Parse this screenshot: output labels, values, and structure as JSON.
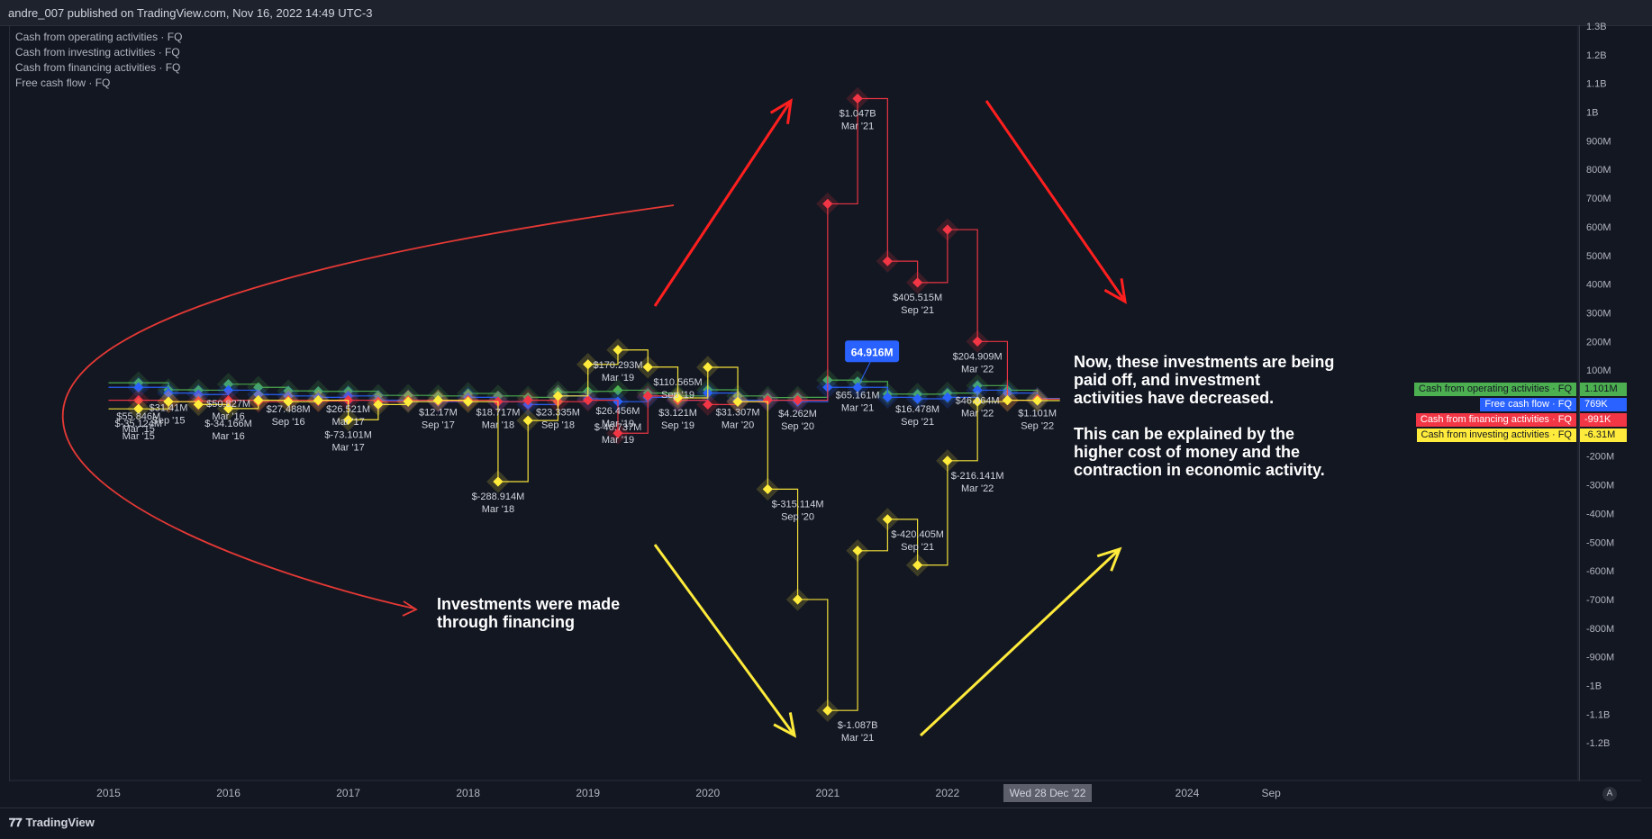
{
  "header": {
    "publisher": "andre_007 published on TradingView.com, Nov 16, 2022 14:49 UTC-3"
  },
  "legend": [
    "Cash from operating activities · FQ",
    "Cash from investing activities · FQ",
    "Cash from financing activities · FQ",
    "Free cash flow · FQ"
  ],
  "badges": [
    {
      "name": "Cash from operating activities · FQ",
      "value": "1.101M",
      "color": "#4caf50",
      "text_color": "#131722"
    },
    {
      "name": "Free cash flow · FQ",
      "value": "769K",
      "color": "#2962ff",
      "text_color": "#ffffff"
    },
    {
      "name": "Cash from financing activities · FQ",
      "value": "-991K",
      "color": "#f23645",
      "text_color": "#ffffff"
    },
    {
      "name": "Cash from investing activities · FQ",
      "value": "-6.31M",
      "color": "#ffeb3b",
      "text_color": "#131722"
    }
  ],
  "callouts": {
    "left": "Investments were made\nthrough financing",
    "right": "Now, these investments are being\npaid off, and investment\nactivities have decreased.\n\nThis can be explained by the\nhigher cost of money and the\ncontraction in economic activity."
  },
  "crosshair_date": "Wed 28 Dec '22",
  "footer": {
    "brand": "TradingView",
    "auto_label": "A"
  },
  "chart_data": {
    "type": "line",
    "step": true,
    "y_unit": "USD",
    "y_ticks": [
      "1.3B",
      "1.2B",
      "1.1B",
      "1B",
      "900M",
      "800M",
      "700M",
      "600M",
      "500M",
      "400M",
      "300M",
      "200M",
      "100M",
      "",
      "-200M",
      "-300M",
      "-400M",
      "-500M",
      "-600M",
      "-700M",
      "-800M",
      "-900M",
      "-1B",
      "-1.1B",
      "-1.2B"
    ],
    "y_tick_values": [
      1300,
      1200,
      1100,
      1000,
      900,
      800,
      700,
      600,
      500,
      400,
      300,
      200,
      100,
      0,
      -200,
      -300,
      -400,
      -500,
      -600,
      -700,
      -800,
      -900,
      -1000,
      -1100,
      -1200
    ],
    "ylim": [
      -1250,
      1330
    ],
    "x_ticks": [
      "2015",
      "2016",
      "2017",
      "2018",
      "2019",
      "2020",
      "2021",
      "2022",
      "2024",
      "Sep"
    ],
    "x_tick_values": [
      2015.0,
      2016.0,
      2017.0,
      2018.0,
      2019.0,
      2020.0,
      2021.0,
      2022.0,
      2024.0,
      2024.7
    ],
    "xlim": [
      2014.15,
      2027.8
    ],
    "quarters": [
      2015.25,
      2015.5,
      2015.75,
      2016.0,
      2016.25,
      2016.5,
      2016.75,
      2017.0,
      2017.25,
      2017.5,
      2017.75,
      2018.0,
      2018.25,
      2018.5,
      2018.75,
      2019.0,
      2019.25,
      2019.5,
      2019.75,
      2020.0,
      2020.25,
      2020.5,
      2020.75,
      2021.0,
      2021.25,
      2021.5,
      2021.75,
      2022.0,
      2022.25,
      2022.5,
      2022.75
    ],
    "series": [
      {
        "name": "Cash from operating activities · FQ",
        "color": "#4caf50",
        "values": [
          55.8,
          31.4,
          30,
          50.8,
          40,
          27.5,
          26,
          26.5,
          12,
          12,
          10,
          18.7,
          10,
          5,
          23.3,
          26,
          30,
          20,
          10,
          31.3,
          10,
          4.3,
          5,
          65.2,
          60,
          16.5,
          16,
          20,
          46.1,
          30,
          1.1
        ]
      },
      {
        "name": "Free cash flow · FQ",
        "color": "#2962ff",
        "values": [
          40,
          20,
          15,
          30,
          15,
          10,
          5,
          10,
          -5,
          -5,
          -10,
          5,
          -10,
          -20,
          10,
          0,
          -10,
          5,
          -5,
          20,
          -5,
          -5,
          -10,
          40,
          40,
          5,
          0,
          5,
          30,
          20,
          0.8
        ]
      },
      {
        "name": "Cash from financing activities · FQ",
        "color": "#f23645",
        "values": [
          -5,
          -10,
          -8,
          -5,
          -10,
          -5,
          -8,
          -5,
          -10,
          -5,
          -8,
          -5,
          -10,
          -5,
          -10,
          -5,
          -120,
          10,
          -5,
          -20,
          -10,
          -5,
          -5,
          680,
          1047,
          480,
          405.5,
          590,
          200,
          -5,
          -1
        ]
      },
      {
        "name": "Cash from investing activities · FQ",
        "color": "#ffeb3b",
        "values": [
          -35.1,
          -10,
          -20,
          -34.2,
          -5,
          -10,
          -5,
          -73.1,
          -20,
          -10,
          -5,
          -10,
          -288.9,
          -75.8,
          10,
          120,
          170.3,
          110.6,
          3.1,
          110,
          -10,
          -315.1,
          -700,
          -1087,
          -530,
          -420.4,
          -580,
          -216.1,
          -10,
          -5,
          -6.3
        ]
      }
    ],
    "data_labels": [
      {
        "text": "$55.846M",
        "sub": "Mar '15"
      },
      {
        "text": "$-35.124M",
        "sub": "Mar '15"
      },
      {
        "text": "$31.41M",
        "sub": "Sep '15"
      },
      {
        "text": "$50.827M",
        "sub": "Mar '16"
      },
      {
        "text": "$-34.166M",
        "sub": "Mar '16"
      },
      {
        "text": "$27.488M",
        "sub": "Sep '16"
      },
      {
        "text": "$26.521M",
        "sub": "Mar '17"
      },
      {
        "text": "$-73.101M",
        "sub": "Mar '17"
      },
      {
        "text": "$12.17M",
        "sub": "Sep '17"
      },
      {
        "text": "$18.717M",
        "sub": "Mar '18"
      },
      {
        "text": "$-288.914M",
        "sub": "Mar '18"
      },
      {
        "text": "$23.335M",
        "sub": "Sep '18"
      },
      {
        "text": "$170.293M",
        "sub": "Mar '19"
      },
      {
        "text": "$26.456M",
        "sub": "Mar '19"
      },
      {
        "text": "$-46.737M",
        "sub": "Mar '19"
      },
      {
        "text": "$110.565M",
        "sub": "Sep '19"
      },
      {
        "text": "$3.121M",
        "sub": "Sep '19"
      },
      {
        "text": "$31.307M",
        "sub": "Mar '20"
      },
      {
        "text": "$4.262M",
        "sub": "Sep '20"
      },
      {
        "text": "$-315.114M",
        "sub": "Sep '20"
      },
      {
        "text": "$1.047B",
        "sub": "Mar '21"
      },
      {
        "text": "$65.161M",
        "sub": "Mar '21"
      },
      {
        "text": "$-1.087B",
        "sub": "Mar '21"
      },
      {
        "text": "$405.515M",
        "sub": "Sep '21"
      },
      {
        "text": "$16.478M",
        "sub": "Sep '21"
      },
      {
        "text": "$-420.405M",
        "sub": "Sep '21"
      },
      {
        "text": "$204.909M",
        "sub": "Mar '22"
      },
      {
        "text": "$46.064M",
        "sub": "Mar '22"
      },
      {
        "text": "$-216.141M",
        "sub": "Mar '22"
      },
      {
        "text": "$1.101M",
        "sub": "Sep '22"
      }
    ],
    "highlight": {
      "text": "64.916M",
      "color": "#2962ff"
    }
  }
}
